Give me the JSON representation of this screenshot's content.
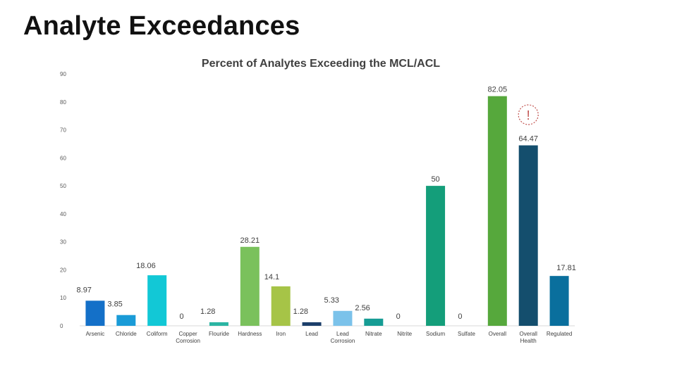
{
  "page": {
    "title": "Analyte Exceedances"
  },
  "chart_data": {
    "type": "bar",
    "title": "Percent of Analytes Exceeding the MCL/ACL",
    "xlabel": "",
    "ylabel": "",
    "ylim": [
      0,
      90
    ],
    "yticks": [
      0,
      10,
      20,
      30,
      40,
      50,
      60,
      70,
      80,
      90
    ],
    "grid": false,
    "categories": [
      "Arsenic",
      "Chloride",
      "Coliform",
      "Copper Corrosion",
      "Flouride",
      "Hardness",
      "Iron",
      "Lead",
      "Lead Corrosion",
      "Nitrate",
      "Nitrite",
      "Sodium",
      "Sulfate",
      "Overall",
      "Overall Health",
      "Regulated"
    ],
    "values": [
      8.97,
      3.85,
      18.06,
      0,
      1.28,
      28.21,
      14.1,
      1.28,
      5.33,
      2.56,
      0,
      50,
      0,
      82.05,
      64.47,
      17.81
    ],
    "value_labels": [
      "8.97",
      "3.85",
      "18.06",
      "0",
      "1.28",
      "28.21",
      "14.1",
      "1.28",
      "5.33",
      "2.56",
      "0",
      "50",
      "0",
      "82.05",
      "64.47",
      "17.81"
    ],
    "colors": [
      "#1470c8",
      "#1a9bd7",
      "#12c8d6",
      "#12c8d6",
      "#2bb5a3",
      "#7ac15c",
      "#a6c447",
      "#1c3f6a",
      "#7bc2ea",
      "#169c94",
      "#1a8a8f",
      "#149e7a",
      "#2e9e66",
      "#56a83c",
      "#144e6d",
      "#0a6f9d"
    ],
    "annotation": {
      "symbol": "!",
      "category": "Overall Health",
      "color": "#c0504d"
    }
  }
}
